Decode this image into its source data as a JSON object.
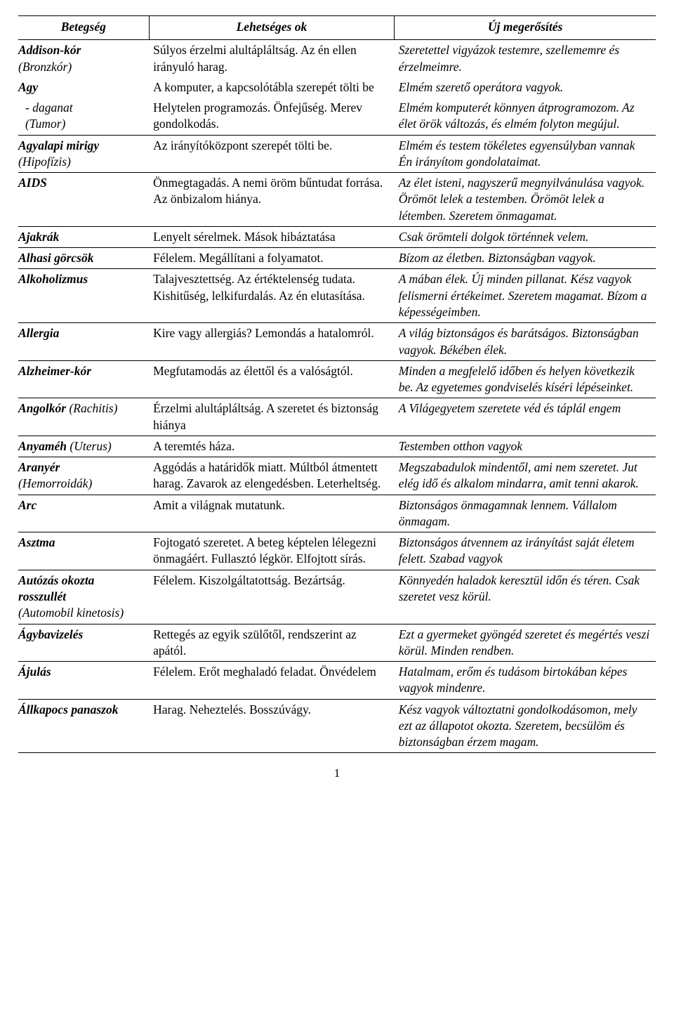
{
  "headers": {
    "c1": "Betegség",
    "c2": "Lehetséges ok",
    "c3": "Új megerősítés"
  },
  "rows": [
    {
      "d_main": "Addison-kór",
      "d_paren": "(Bronzkór)",
      "c": "Súlyos érzelmi alultápláltság. Az én ellen irányuló harag.",
      "a": "Szeretettel vigyázok testemre, szellememre és érzelmeimre.",
      "nosep": true
    },
    {
      "d_main": "Agy",
      "c": "A komputer, a kapcsolótábla szerepét tölti be",
      "a": "Elmém szerető operátora vagyok.",
      "nosep": true
    },
    {
      "d_indent": "- daganat",
      "d_paren": "(Tumor)",
      "c": "Helytelen programozás. Önfejűség. Merev gondolkodás.",
      "a": "Elmém komputerét könnyen átprogramozom. Az élet örök változás, és elmém folyton megújul."
    },
    {
      "d_main": "Agyalapi mirigy",
      "d_paren": "(Hipofízis)",
      "c": "Az irányítóközpont szerepét tölti be.",
      "a": "Elmém és testem tökéletes egyensúlyban vannak Én irányítom gondolataimat."
    },
    {
      "d_main": "AIDS",
      "c": "Önmegtagadás. A nemi öröm bűntudat forrása. Az önbizalom hiánya.",
      "a": "Az élet isteni, nagyszerű megnyilvánulása vagyok. Örömöt lelek a testemben. Örömöt lelek a létemben. Szeretem önmagamat."
    },
    {
      "d_main": "Ajakrák",
      "c": "Lenyelt sérelmek. Mások hibáztatása",
      "a": "Csak örömteli dolgok történnek velem."
    },
    {
      "d_main": "Alhasi görcsök",
      "c": "Félelem. Megállítani a folyamatot.",
      "a": "Bízom az életben. Biztonságban vagyok."
    },
    {
      "d_main": "Alkoholizmus",
      "c": "Talajvesztettség. Az értéktelenség tudata. Kishitűség, lelkifurdalás. Az én elutasítása.",
      "a": "A mában élek. Új minden pillanat. Kész vagyok felismerni értékeimet. Szeretem magamat. Bízom a képességeimben."
    },
    {
      "d_main": "Allergia",
      "c": "Kire vagy allergiás? Lemondás a hatalomról.",
      "a": "A világ biztonságos és barátságos. Biztonságban vagyok. Békében élek."
    },
    {
      "d_main": "Alzheimer-kór",
      "c": "Megfutamodás az élettől és a valóságtól.",
      "a": "Minden a megfelelő időben és helyen következik be. Az egyetemes gondviselés kíséri lépéseinket."
    },
    {
      "d_main": "Angolkór",
      "d_paren_inline": "(Rachitis)",
      "c": "Érzelmi alultápláltság. A szeretet és biztonság hiánya",
      "a": "A Világegyetem szeretete véd és táplál engem"
    },
    {
      "d_main": "Anyaméh",
      "d_paren_inline": "(Uterus)",
      "c": "A teremtés háza.",
      "a": "Testemben otthon vagyok"
    },
    {
      "d_main": "Aranyér",
      "d_paren": "(Hemorroidák)",
      "c": "Aggódás a határidők miatt. Múltból átmentett harag. Zavarok az elengedésben. Leterheltség.",
      "a": "Megszabadulok mindentől, ami nem szeretet. Jut elég idő és alkalom mindarra, amit tenni akarok."
    },
    {
      "d_main": "Arc",
      "c": "Amit a világnak mutatunk.",
      "a": "Biztonságos önmagamnak lennem. Vállalom önmagam."
    },
    {
      "d_main": "Asztma",
      "c": "Fojtogató szeretet. A beteg képtelen lélegezni önmagáért. Fullasztó légkör. Elfojtott sírás.",
      "a": "Biztonságos átvennem az irányítást saját életem felett. Szabad vagyok"
    },
    {
      "d_main": "Autózás okozta rosszullét",
      "d_paren": "(Automobil kinetosis)",
      "c": "Félelem. Kiszolgáltatottság. Bezártság.",
      "a": "Könnyedén haladok keresztül időn és téren. Csak szeretet vesz körül."
    },
    {
      "d_main": "Ágybavizelés",
      "c": "Rettegés az egyik szülőtől, rendszerint az apától.",
      "a": "Ezt a gyermeket gyöngéd szeretet és megértés veszi körül. Minden rendben."
    },
    {
      "d_main": "Ájulás",
      "c": "Félelem. Erőt meghaladó feladat. Önvédelem",
      "a": "Hatalmam, erőm és tudásom birtokában képes vagyok mindenre."
    },
    {
      "d_main": "Állkapocs panaszok",
      "c": "Harag. Neheztelés. Bosszúvágy.",
      "a": "Kész vagyok változtatni gondolkodásomon, mely ezt az állapotot okozta. Szeretem, becsülöm és biztonságban érzem magam."
    }
  ],
  "page_number": "1"
}
